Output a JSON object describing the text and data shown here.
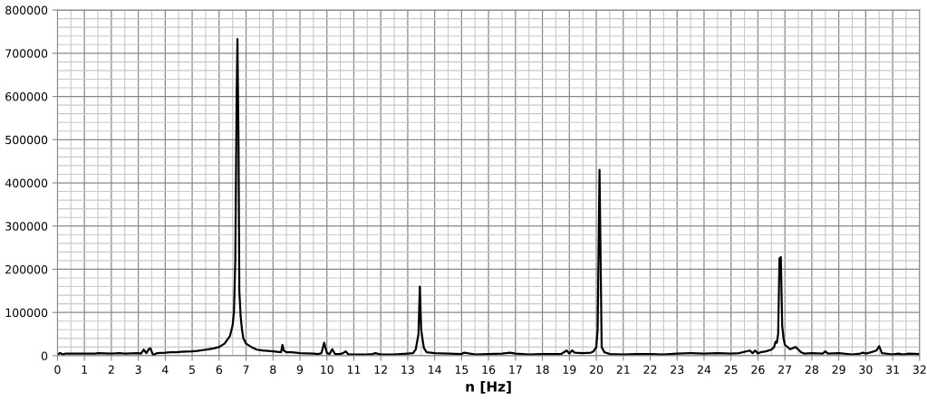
{
  "chart_data": {
    "type": "line",
    "xlabel": "n [Hz]",
    "x": [
      0.0,
      0.1,
      0.2,
      0.3,
      0.5,
      1.0,
      1.4,
      1.5,
      2.0,
      2.3,
      2.5,
      3.0,
      3.1,
      3.2,
      3.3,
      3.4,
      3.45,
      3.55,
      3.6,
      3.7,
      4.0,
      4.2,
      4.4,
      4.6,
      5.0,
      5.2,
      5.4,
      5.6,
      5.8,
      6.0,
      6.2,
      6.4,
      6.5,
      6.55,
      6.6,
      6.65,
      6.68,
      6.72,
      6.75,
      6.8,
      6.85,
      6.9,
      7.0,
      7.2,
      7.4,
      7.6,
      8.0,
      8.3,
      8.35,
      8.4,
      8.5,
      8.7,
      9.0,
      9.5,
      9.7,
      9.8,
      9.9,
      10.0,
      10.1,
      10.2,
      10.3,
      10.5,
      10.6,
      10.7,
      10.8,
      11.0,
      11.5,
      11.7,
      11.8,
      12.0,
      12.5,
      13.0,
      13.2,
      13.3,
      13.4,
      13.45,
      13.5,
      13.6,
      13.7,
      14.0,
      14.5,
      15.0,
      15.1,
      15.5,
      16.0,
      16.5,
      16.8,
      17.0,
      17.5,
      18.0,
      18.7,
      18.9,
      19.0,
      19.1,
      19.2,
      19.5,
      19.8,
      19.9,
      20.0,
      20.05,
      20.12,
      20.2,
      20.3,
      20.5,
      21.0,
      21.5,
      22.0,
      22.5,
      23.0,
      23.5,
      24.0,
      24.5,
      25.0,
      25.3,
      25.7,
      25.8,
      25.9,
      26.0,
      26.1,
      26.3,
      26.5,
      26.6,
      26.65,
      26.7,
      26.75,
      26.8,
      26.85,
      26.9,
      26.95,
      27.0,
      27.2,
      27.4,
      27.6,
      27.7,
      28.0,
      28.4,
      28.5,
      28.6,
      29.0,
      29.5,
      29.8,
      29.9,
      30.0,
      30.2,
      30.4,
      30.5,
      30.6,
      31.0,
      31.2,
      31.4,
      31.6,
      32.0
    ],
    "values": [
      3000,
      6000,
      3000,
      5000,
      5000,
      5000,
      5000,
      6000,
      5000,
      6000,
      5000,
      6000,
      5000,
      14000,
      6000,
      16000,
      17000,
      1000,
      3000,
      6000,
      7000,
      8000,
      8000,
      9000,
      10000,
      11000,
      13000,
      15000,
      17000,
      20000,
      28000,
      45000,
      70000,
      100000,
      220000,
      600000,
      733000,
      500000,
      150000,
      90000,
      60000,
      40000,
      28000,
      20000,
      14000,
      12000,
      10000,
      8000,
      25000,
      12000,
      8000,
      8000,
      6000,
      5000,
      4000,
      6000,
      30000,
      6000,
      4000,
      15000,
      4000,
      4000,
      6000,
      10000,
      3000,
      3000,
      3000,
      4000,
      6000,
      3000,
      3000,
      5000,
      6000,
      15000,
      50000,
      160000,
      60000,
      18000,
      8000,
      6000,
      5000,
      4000,
      7000,
      3000,
      4000,
      5000,
      7000,
      5000,
      3000,
      4000,
      4000,
      12000,
      5000,
      12000,
      7000,
      6000,
      7000,
      10000,
      20000,
      60000,
      430000,
      20000,
      8000,
      4000,
      3000,
      4000,
      4000,
      3000,
      5000,
      6000,
      5000,
      6000,
      5000,
      6000,
      12000,
      6000,
      12000,
      5000,
      8000,
      10000,
      14000,
      20000,
      32000,
      30000,
      50000,
      225000,
      228000,
      70000,
      40000,
      25000,
      15000,
      20000,
      8000,
      5000,
      6000,
      5000,
      10000,
      5000,
      6000,
      3000,
      5000,
      7000,
      5000,
      8000,
      12000,
      22000,
      6000,
      3000,
      5000,
      3000,
      5000,
      4000
    ],
    "color": "#000000",
    "xlim": [
      0,
      32
    ],
    "xticks": [
      0,
      1,
      2,
      3,
      4,
      5,
      6,
      7,
      8,
      9,
      10,
      11,
      12,
      13,
      14,
      15,
      16,
      17,
      18,
      19,
      20,
      21,
      22,
      23,
      24,
      25,
      26,
      27,
      28,
      29,
      30,
      31,
      32
    ],
    "ylim": [
      0,
      800000
    ],
    "yticks": [
      0,
      100000,
      200000,
      300000,
      400000,
      500000,
      600000,
      700000,
      800000
    ],
    "grid": true
  }
}
